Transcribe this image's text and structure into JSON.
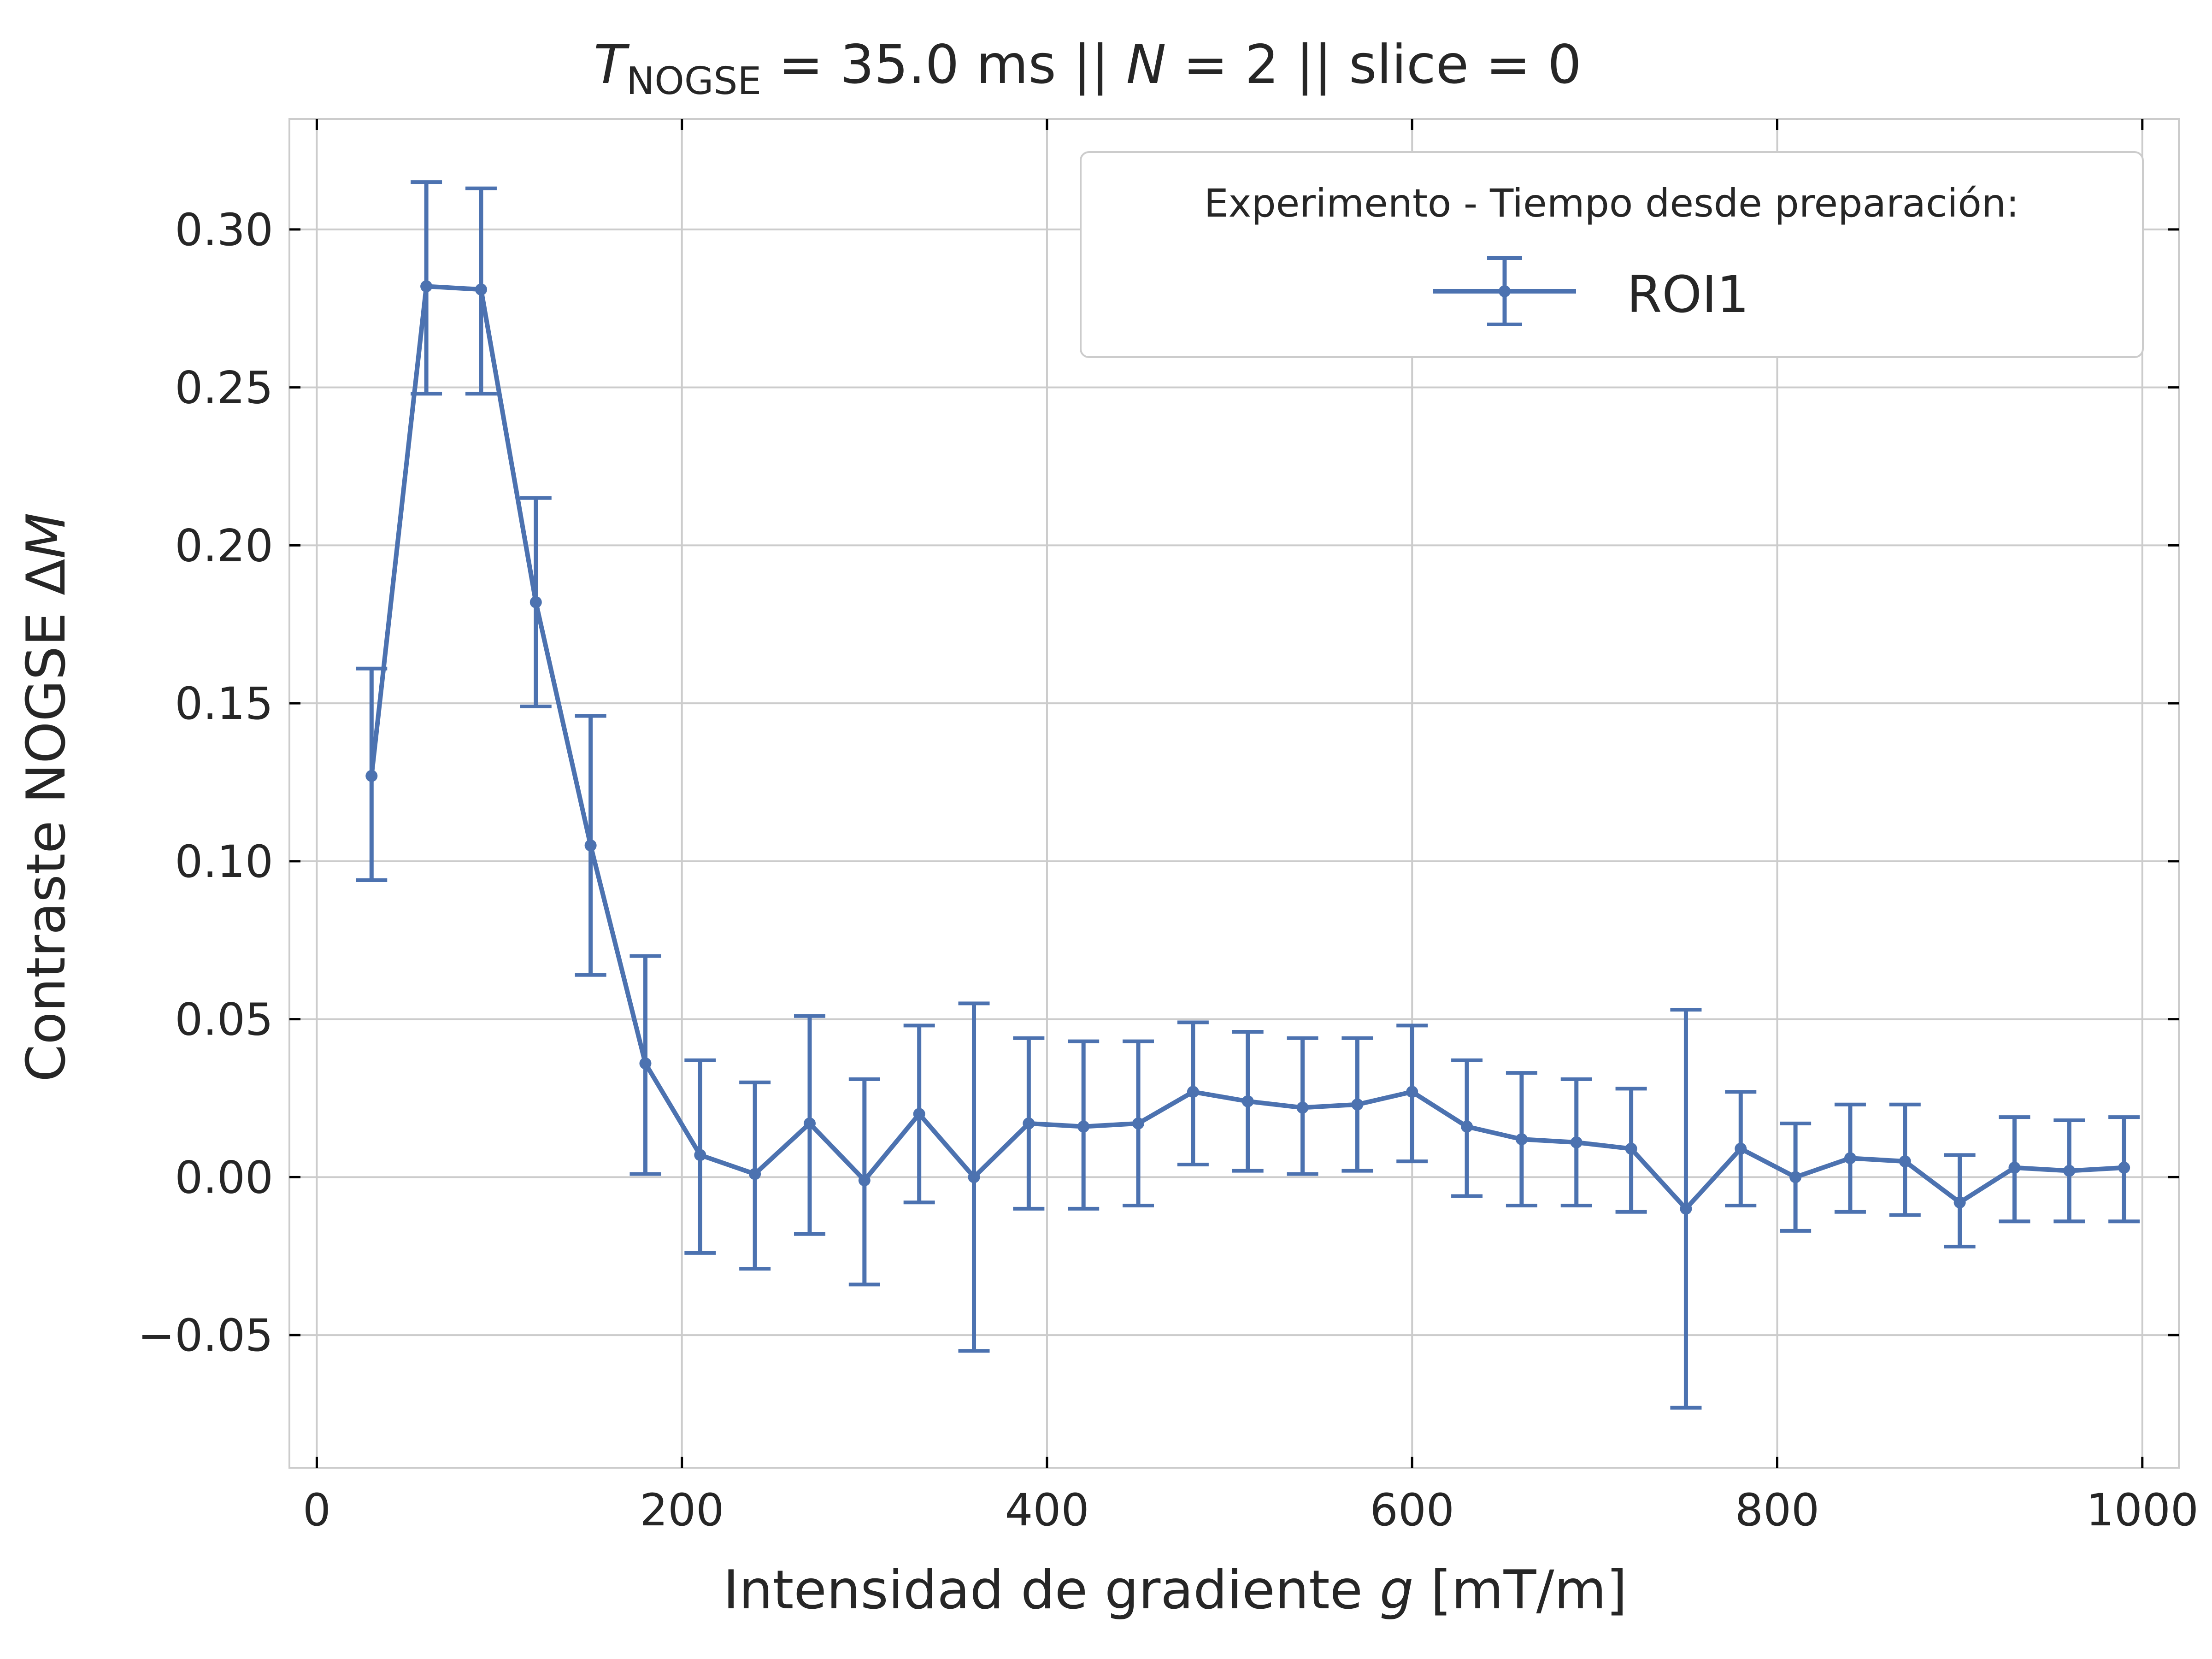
{
  "chart_data": {
    "type": "line",
    "title": {
      "prefix_italic": "T",
      "subscript": "NOGSE",
      "part_a": " = 35.0 ms  ||  ",
      "n_italic": "N",
      "part_b": " = 2 || slice = 0"
    },
    "xlabel": {
      "text": "Intensidad de gradiente ",
      "italic": "g",
      "suffix": " [mT/m]"
    },
    "ylabel": {
      "text": "Contraste NOGSE Δ",
      "italic": "M"
    },
    "xlim": [
      -15,
      1020
    ],
    "ylim": [
      -0.092,
      0.335
    ],
    "xticks": [
      0,
      200,
      400,
      600,
      800,
      1000
    ],
    "xtick_labels": [
      "0",
      "200",
      "400",
      "600",
      "800",
      "1000"
    ],
    "yticks": [
      -0.05,
      0.0,
      0.05,
      0.1,
      0.15,
      0.2,
      0.25,
      0.3
    ],
    "ytick_labels": [
      "−0.05",
      "0.00",
      "0.05",
      "0.10",
      "0.15",
      "0.20",
      "0.25",
      "0.30"
    ],
    "grid": true,
    "legend": {
      "title": "Experimento - Tiempo desde preparación:",
      "position": "top-right",
      "entries": [
        "ROI1"
      ]
    },
    "series": [
      {
        "name": "ROI1",
        "color": "#4c72b0",
        "x": [
          30,
          60,
          90,
          120,
          150,
          180,
          210,
          240,
          270,
          300,
          330,
          360,
          390,
          420,
          450,
          480,
          510,
          540,
          570,
          600,
          630,
          660,
          690,
          720,
          750,
          780,
          810,
          840,
          870,
          900,
          930,
          960,
          990
        ],
        "y": [
          0.127,
          0.282,
          0.281,
          0.182,
          0.105,
          0.036,
          0.007,
          0.001,
          0.017,
          -0.001,
          0.02,
          0.0,
          0.017,
          0.016,
          0.017,
          0.027,
          0.024,
          0.022,
          0.023,
          0.027,
          0.016,
          0.012,
          0.011,
          0.009,
          -0.01,
          0.009,
          0.0,
          0.006,
          0.005,
          -0.008,
          0.003,
          0.002,
          0.003
        ],
        "yerr_low": [
          0.094,
          0.248,
          0.248,
          0.149,
          0.064,
          0.001,
          -0.024,
          -0.029,
          -0.018,
          -0.034,
          -0.008,
          -0.055,
          -0.01,
          -0.01,
          -0.009,
          0.004,
          0.002,
          0.001,
          0.002,
          0.005,
          -0.006,
          -0.009,
          -0.009,
          -0.011,
          -0.073,
          -0.009,
          -0.017,
          -0.011,
          -0.012,
          -0.022,
          -0.014,
          -0.014,
          -0.014
        ],
        "yerr_high": [
          0.161,
          0.315,
          0.313,
          0.215,
          0.146,
          0.07,
          0.037,
          0.03,
          0.051,
          0.031,
          0.048,
          0.055,
          0.044,
          0.043,
          0.043,
          0.049,
          0.046,
          0.044,
          0.044,
          0.048,
          0.037,
          0.033,
          0.031,
          0.028,
          0.053,
          0.027,
          0.017,
          0.023,
          0.023,
          0.007,
          0.019,
          0.018,
          0.019
        ]
      }
    ]
  }
}
